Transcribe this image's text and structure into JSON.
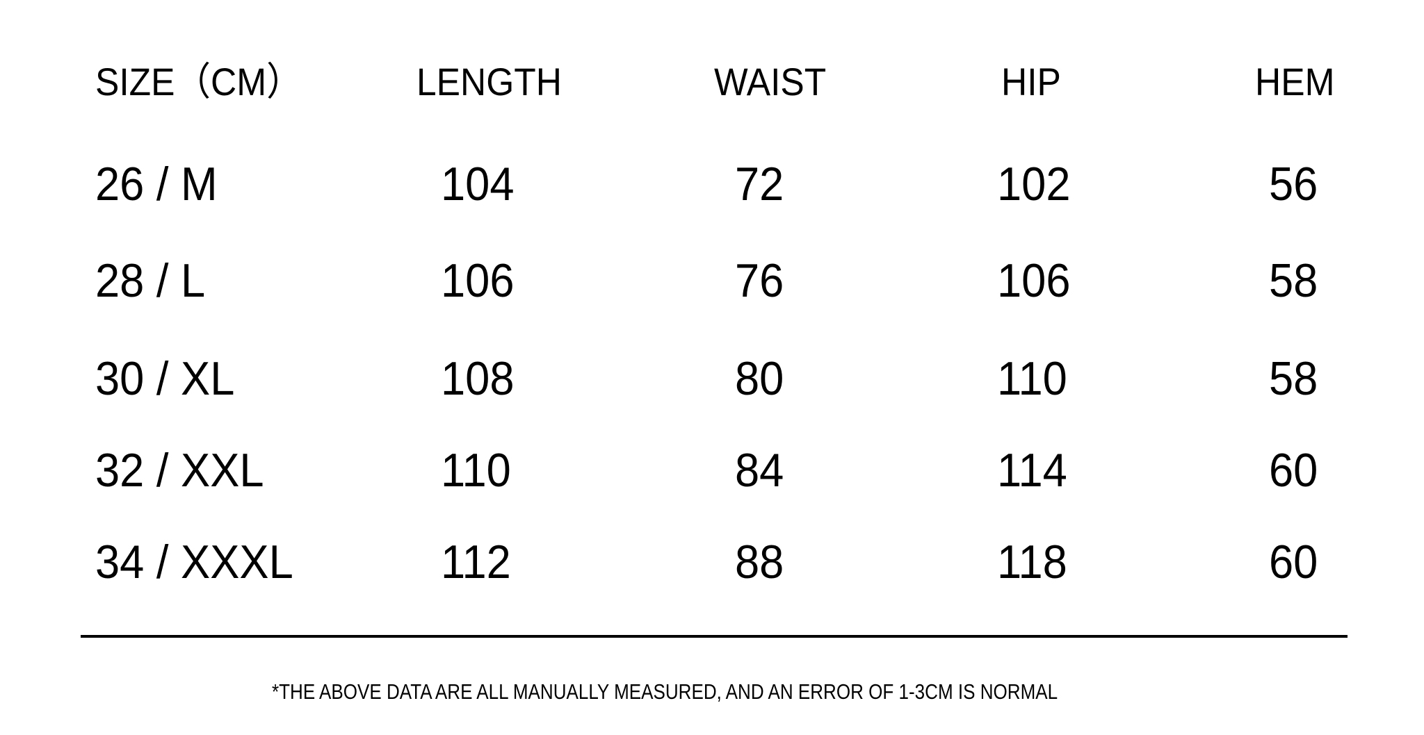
{
  "table": {
    "headers": [
      "SIZE（CM）",
      "LENGTH",
      "WAIST",
      "HIP",
      "HEM"
    ],
    "rows": [
      [
        "26 / M",
        "104",
        "72",
        "102",
        "56"
      ],
      [
        "28 / L",
        "106",
        "76",
        "106",
        "58"
      ],
      [
        "30 / XL",
        "108",
        "80",
        "110",
        "58"
      ],
      [
        "32 / XXL",
        "110",
        "84",
        "114",
        "60"
      ],
      [
        "34 / XXXL",
        "112",
        "88",
        "118",
        "60"
      ]
    ]
  },
  "footnote": "*THE ABOVE DATA ARE ALL MANUALLY MEASURED, AND AN ERROR OF 1-3CM IS NORMAL"
}
